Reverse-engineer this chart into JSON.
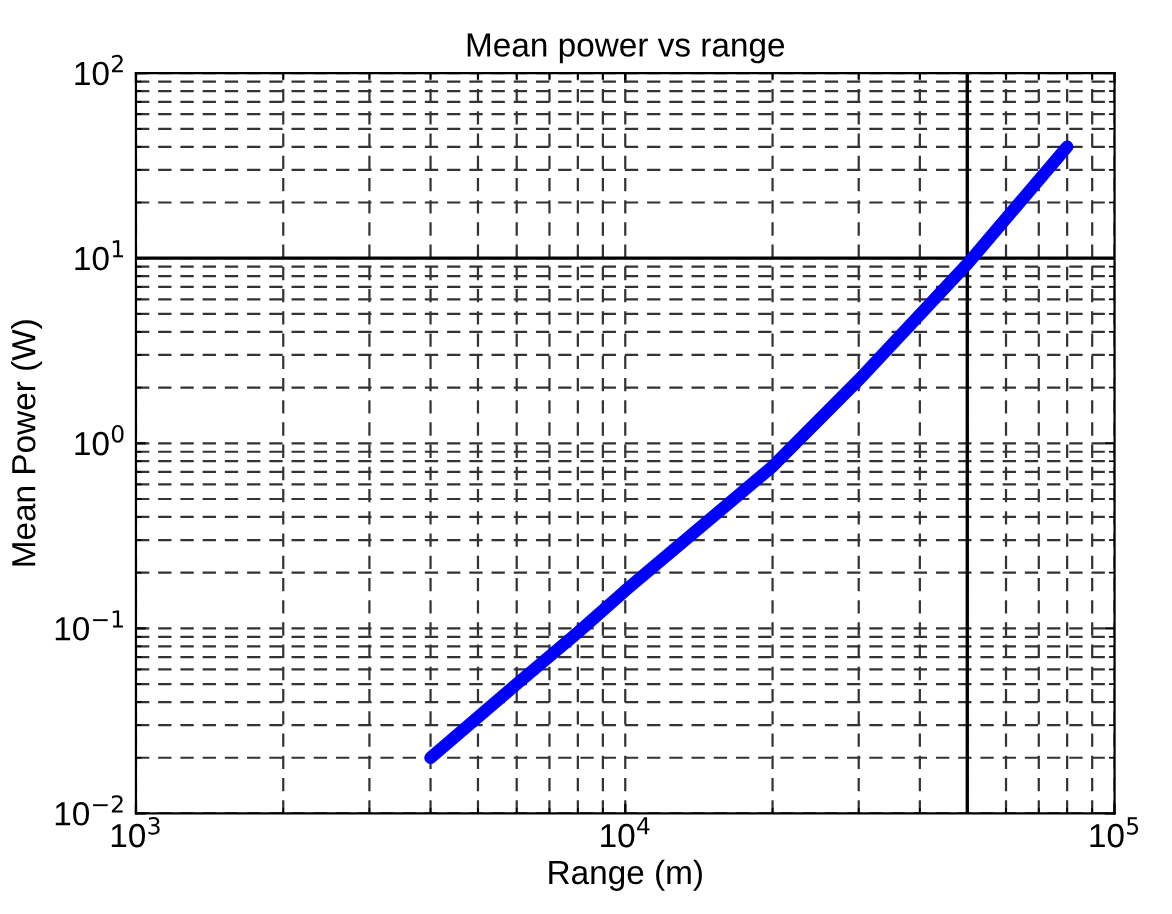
{
  "chart_data": {
    "type": "line",
    "title": "Mean power vs range",
    "xlabel": "Range (m)",
    "ylabel": "Mean Power (W)",
    "log": "xy",
    "grid": true,
    "line_style": "solid",
    "marker": "none",
    "xlim": [
      1000,
      100000
    ],
    "ylim": [
      0.01,
      100
    ],
    "xticks": [
      {
        "value": 1000,
        "label": "10$^{3}$"
      },
      {
        "value": 10000,
        "label": "10$^{4}$"
      },
      {
        "value": 100000,
        "label": "10$^{5}$"
      }
    ],
    "yticks": [
      {
        "value": 0.01,
        "label": "10$^{−2}$"
      },
      {
        "value": 0.1,
        "label": "10$^{−1}$"
      },
      {
        "value": 1,
        "label": "10$^{0}$"
      },
      {
        "value": 10,
        "label": "10$^{1}$"
      },
      {
        "value": 100,
        "label": "10$^{2}$"
      }
    ],
    "ref_lines": [
      {
        "axis": "x",
        "value": 50000,
        "color": "#000000",
        "line_style": "solid"
      },
      {
        "axis": "y",
        "value": 10,
        "color": "#000000",
        "line_style": "solid"
      }
    ],
    "series": [
      {
        "color": "#0000ff",
        "x": [
          4000,
          6000,
          8000,
          10000,
          20000,
          30000,
          50000,
          80000
        ],
        "values": [
          0.02,
          0.05,
          0.095,
          0.16,
          0.75,
          2.2,
          9.3,
          40
        ]
      }
    ]
  }
}
